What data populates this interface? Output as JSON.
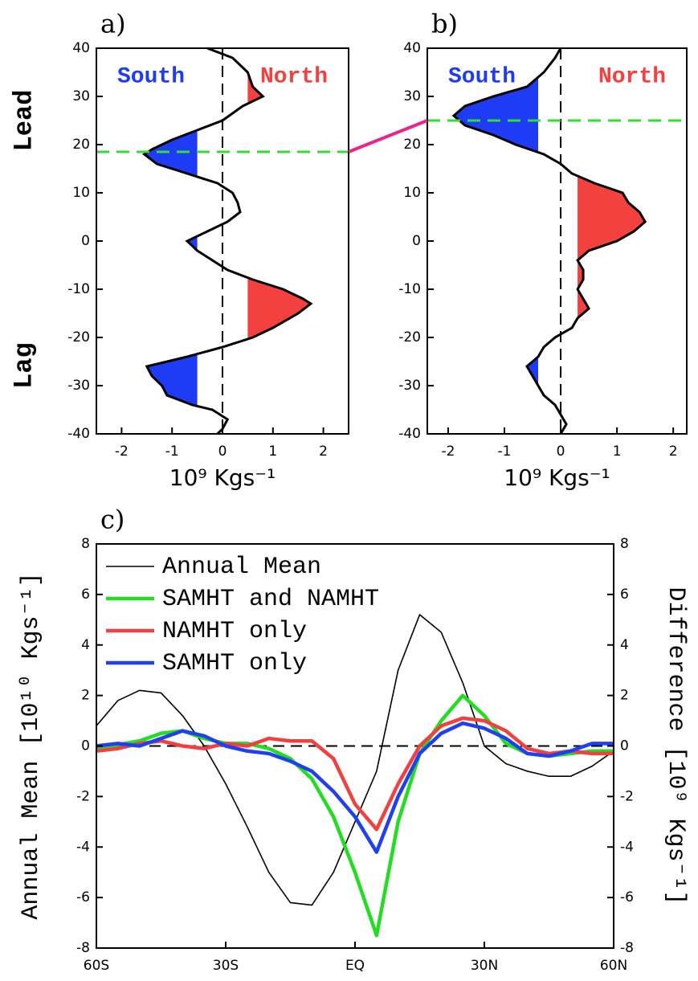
{
  "chart_data": [
    {
      "type": "profile",
      "label": "a)",
      "y": [
        40,
        38,
        35,
        32,
        30,
        28,
        25,
        23,
        21,
        19,
        18,
        16,
        14,
        12,
        10,
        8,
        6,
        4,
        2,
        0,
        -2,
        -4,
        -6,
        -8,
        -10,
        -12,
        -13,
        -15,
        -18,
        -20,
        -22,
        -24,
        -26,
        -28,
        -30,
        -32,
        -34,
        -35,
        -37,
        -39,
        -40
      ],
      "series": [
        {
          "color": "#000000",
          "values": [
            -0.3,
            0.2,
            0.5,
            0.6,
            0.8,
            0.4,
            0,
            -0.5,
            -1.0,
            -1.4,
            -1.55,
            -1.3,
            -0.7,
            -0.1,
            0.2,
            0.3,
            0.35,
            0.1,
            -0.3,
            -0.7,
            -0.5,
            -0.2,
            0.1,
            0.6,
            1.2,
            1.6,
            1.75,
            1.5,
            1.0,
            0.6,
            0.0,
            -0.7,
            -1.5,
            -1.4,
            -1.2,
            -1.1,
            -0.6,
            -0.2,
            0.1,
            0.0,
            -0.1
          ]
        }
      ],
      "xlim": [
        -2.5,
        2.5
      ],
      "xticks": [
        -2,
        -1,
        0,
        1,
        2
      ],
      "ylim": [
        -40,
        40
      ],
      "yticks": [
        -40,
        -30,
        -20,
        -10,
        0,
        10,
        20,
        30,
        40
      ],
      "xlabel": "10⁹ Kgs⁻¹",
      "shading": [
        {
          "name": "South",
          "color": "#1e3cf5",
          "bound": -0.5,
          "side": "below"
        },
        {
          "name": "North",
          "color": "#f54040",
          "bound": 0.5,
          "side": "above"
        }
      ],
      "reference_line": {
        "value": 18.5,
        "color": "#33dd33"
      },
      "side_labels": [
        "Lead",
        "Lag"
      ]
    },
    {
      "type": "profile",
      "label": "b)",
      "y": [
        40,
        38,
        35,
        32,
        30,
        28,
        26,
        24,
        22,
        20,
        18,
        16,
        14,
        12,
        10,
        8,
        6,
        4,
        2,
        0,
        -2,
        -4,
        -6,
        -8,
        -10,
        -12,
        -14,
        -16,
        -18,
        -20,
        -22,
        -24,
        -26,
        -28,
        -30,
        -32,
        -34,
        -36,
        -38,
        -40
      ],
      "series": [
        {
          "color": "#000000",
          "values": [
            0.0,
            -0.1,
            -0.3,
            -0.6,
            -1.2,
            -1.7,
            -1.9,
            -1.7,
            -1.2,
            -0.8,
            -0.3,
            0.0,
            0.2,
            0.6,
            1.1,
            1.2,
            1.4,
            1.5,
            1.3,
            1.0,
            0.5,
            0.3,
            0.4,
            0.4,
            0.3,
            0.4,
            0.5,
            0.3,
            0.2,
            -0.1,
            -0.3,
            -0.4,
            -0.6,
            -0.5,
            -0.4,
            -0.3,
            -0.1,
            0.0,
            0.1,
            0.0
          ]
        }
      ],
      "xlim": [
        -2.37,
        2.24
      ],
      "xticks": [
        -2,
        -1,
        0,
        1,
        2
      ],
      "ylim": [
        -40,
        40
      ],
      "yticks": [
        -40,
        -30,
        -20,
        -10,
        0,
        10,
        20,
        30,
        40
      ],
      "xlabel": "10⁹ Kgs⁻¹",
      "shading": [
        {
          "name": "South",
          "color": "#1e3cf5",
          "bound": -0.4,
          "side": "below"
        },
        {
          "name": "North",
          "color": "#f54040",
          "bound": 0.3,
          "side": "above"
        }
      ],
      "reference_line": {
        "value": 25,
        "color": "#33dd33"
      }
    },
    {
      "type": "line",
      "label": "c)",
      "x": [
        -60,
        -55,
        -50,
        -45,
        -40,
        -35,
        -30,
        -25,
        -20,
        -15,
        -10,
        -5,
        0,
        5,
        10,
        15,
        20,
        25,
        30,
        35,
        40,
        45,
        50,
        55,
        60
      ],
      "xlim": [
        -60,
        60
      ],
      "xticks": [
        {
          "value": -60,
          "label": "60S"
        },
        {
          "value": -30,
          "label": "30S"
        },
        {
          "value": 0,
          "label": "EQ"
        },
        {
          "value": 30,
          "label": "30N"
        },
        {
          "value": 60,
          "label": "60N"
        }
      ],
      "ylim": [
        -8,
        8
      ],
      "yticks": [
        -8,
        -6,
        -4,
        -2,
        0,
        2,
        4,
        6,
        8
      ],
      "y2lim": [
        -8,
        8
      ],
      "y2ticks": [
        -8,
        -6,
        -4,
        -2,
        0,
        2,
        4,
        6,
        8
      ],
      "ylabel": "Annual Mean [10¹⁰ Kgs⁻¹]",
      "y2label": "Difference [10⁹ Kgs⁻¹]",
      "legend": "upper left",
      "series": [
        {
          "name": "Annual Mean",
          "color": "#000000",
          "values": [
            0.8,
            1.8,
            2.2,
            2.1,
            1.2,
            0,
            -1.5,
            -3.2,
            -5.0,
            -6.2,
            -6.3,
            -5,
            -3,
            -1,
            3,
            5.2,
            4.5,
            2.5,
            0,
            -0.7,
            -1.0,
            -1.2,
            -1.2,
            -0.8,
            -0.2
          ]
        },
        {
          "name": "SAMHT and NAMHT",
          "color": "#22dd22",
          "axis": "y2",
          "values": [
            -0.1,
            0.05,
            0.2,
            0.5,
            0.6,
            0.3,
            0.1,
            0.1,
            -0.1,
            -0.5,
            -1.3,
            -2.8,
            -5,
            -7.5,
            -3,
            -0.3,
            1.0,
            2.0,
            1.2,
            0.1,
            -0.3,
            -0.4,
            -0.3,
            -0.2,
            -0.2
          ]
        },
        {
          "name": "NAMHT only",
          "color": "#f04040",
          "axis": "y2",
          "values": [
            -0.2,
            -0.1,
            0.1,
            0.2,
            0.0,
            -0.1,
            0.1,
            0.0,
            0.3,
            0.2,
            0.2,
            -0.5,
            -2.3,
            -3.3,
            -1.5,
            0.0,
            0.8,
            1.1,
            1.0,
            0.6,
            -0.1,
            -0.3,
            -0.2,
            -0.3,
            -0.3
          ]
        },
        {
          "name": "SAMHT only",
          "color": "#2040f0",
          "axis": "y2",
          "values": [
            0,
            0.1,
            0.0,
            0.3,
            0.6,
            0.4,
            0.0,
            -0.2,
            -0.3,
            -0.6,
            -1.0,
            -1.8,
            -2.8,
            -4.2,
            -2.0,
            -0.3,
            0.5,
            0.9,
            0.7,
            0.3,
            -0.3,
            -0.4,
            -0.2,
            0.1,
            0.1
          ]
        }
      ]
    }
  ]
}
